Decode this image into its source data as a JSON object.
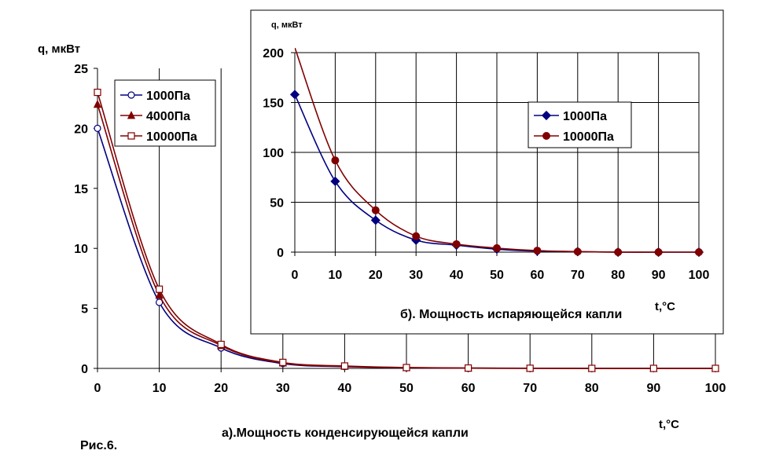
{
  "figure_label": "Рис.6.",
  "chart_data": [
    {
      "type": "line",
      "caption": "а).Мощность конденсирующейся капли",
      "ylabel": "q, мкВт",
      "xlabel": "t,°C",
      "xlim": [
        0,
        100
      ],
      "ylim": [
        0,
        25
      ],
      "x_ticks": [
        "0",
        "10",
        "20",
        "30",
        "40",
        "50",
        "60",
        "70",
        "80",
        "90",
        "100"
      ],
      "y_ticks": [
        "0",
        "5",
        "10",
        "15",
        "20",
        "25"
      ],
      "grid": "vertical",
      "legend_position": "top-left",
      "x": [
        0,
        10,
        20,
        30,
        40,
        50,
        60,
        70,
        80,
        90,
        100
      ],
      "series": [
        {
          "name": "1000Па",
          "color": "#000080",
          "marker": "circle-open",
          "values": [
            20.0,
            5.5,
            1.7,
            0.4,
            0.15,
            0.05,
            0.02,
            0.01,
            0.0,
            0.0,
            0.0
          ]
        },
        {
          "name": "4000Па",
          "color": "#800000",
          "marker": "triangle-filled",
          "values": [
            22.0,
            6.1,
            1.9,
            0.45,
            0.17,
            0.06,
            0.02,
            0.01,
            0.0,
            0.0,
            0.0
          ]
        },
        {
          "name": "10000Па",
          "color": "#800000",
          "marker": "square-open",
          "values": [
            23.0,
            6.6,
            2.0,
            0.5,
            0.2,
            0.07,
            0.03,
            0.01,
            0.0,
            0.0,
            0.0
          ]
        }
      ]
    },
    {
      "type": "line",
      "caption": "б). Мощность испаряющейся капли",
      "ylabel": "q, мкВт",
      "xlabel": "t,°C",
      "xlim": [
        0,
        100
      ],
      "ylim": [
        0,
        200
      ],
      "x_ticks": [
        "0",
        "10",
        "20",
        "30",
        "40",
        "50",
        "60",
        "70",
        "80",
        "90",
        "100"
      ],
      "y_ticks": [
        "0",
        "50",
        "100",
        "150",
        "200"
      ],
      "grid": "both",
      "legend_position": "center-right",
      "x": [
        0,
        10,
        20,
        30,
        40,
        50,
        60,
        70,
        80,
        90,
        100
      ],
      "series": [
        {
          "name": "1000Па",
          "color": "#000080",
          "marker": "diamond-filled",
          "values": [
            158,
            71,
            32,
            12,
            7,
            3,
            1,
            0.5,
            0,
            0,
            0
          ]
        },
        {
          "name": "10000Па",
          "color": "#800000",
          "marker": "circle-filled",
          "values": [
            205,
            92,
            42,
            16,
            8,
            4,
            1.5,
            0.5,
            0,
            0,
            0
          ]
        }
      ]
    }
  ]
}
